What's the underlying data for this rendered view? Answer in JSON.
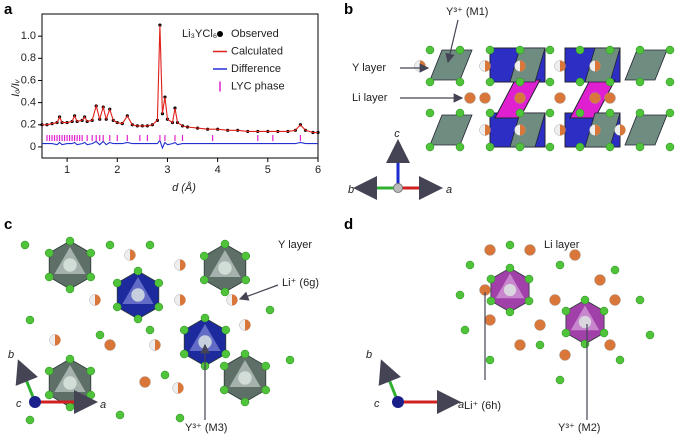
{
  "chart_data": {
    "type": "line",
    "panel_label": "a",
    "annotation": "Li₃YCl₆",
    "xlabel": "d (Å)",
    "ylabel": "Iₒ/Iᵥ",
    "xlim": [
      0.5,
      6
    ],
    "xticks": [
      1,
      2,
      3,
      4,
      5,
      6
    ],
    "ylim": [
      -0.1,
      1.2
    ],
    "yticks": [
      0,
      0.2,
      0.4,
      0.6,
      0.8,
      {
        "value": 1,
        "label": "1.0"
      }
    ],
    "legend": "upper right",
    "x": [
      0.5,
      0.6,
      0.7,
      0.8,
      0.85,
      0.9,
      1.0,
      1.1,
      1.15,
      1.2,
      1.3,
      1.35,
      1.4,
      1.5,
      1.58,
      1.65,
      1.72,
      1.78,
      1.85,
      1.92,
      2.0,
      2.1,
      2.2,
      2.3,
      2.4,
      2.5,
      2.6,
      2.7,
      2.8,
      2.85,
      2.9,
      2.95,
      3.0,
      3.1,
      3.15,
      3.2,
      3.3,
      3.4,
      3.6,
      3.8,
      4.0,
      4.2,
      4.4,
      4.6,
      4.8,
      5.0,
      5.2,
      5.4,
      5.55,
      5.65,
      5.75,
      5.9,
      6.0
    ],
    "series": [
      {
        "name": "Observed",
        "color": "#000000",
        "style": "dots",
        "values": [
          0.2,
          0.2,
          0.21,
          0.22,
          0.27,
          0.22,
          0.22,
          0.23,
          0.28,
          0.23,
          0.24,
          0.27,
          0.23,
          0.24,
          0.37,
          0.25,
          0.36,
          0.25,
          0.34,
          0.24,
          0.22,
          0.21,
          0.28,
          0.2,
          0.19,
          0.19,
          0.19,
          0.2,
          0.24,
          1.1,
          0.3,
          0.45,
          0.25,
          0.22,
          0.35,
          0.22,
          0.19,
          0.18,
          0.17,
          0.16,
          0.16,
          0.15,
          0.15,
          0.14,
          0.14,
          0.14,
          0.14,
          0.14,
          0.15,
          0.2,
          0.15,
          0.13,
          0.13
        ]
      },
      {
        "name": "Calculated",
        "color": "#e0201a",
        "style": "line",
        "values": [
          0.2,
          0.2,
          0.21,
          0.22,
          0.27,
          0.22,
          0.22,
          0.23,
          0.28,
          0.23,
          0.24,
          0.27,
          0.23,
          0.24,
          0.37,
          0.25,
          0.36,
          0.25,
          0.34,
          0.24,
          0.22,
          0.21,
          0.28,
          0.2,
          0.19,
          0.19,
          0.19,
          0.2,
          0.24,
          1.1,
          0.3,
          0.45,
          0.25,
          0.22,
          0.35,
          0.22,
          0.19,
          0.18,
          0.17,
          0.16,
          0.16,
          0.15,
          0.15,
          0.14,
          0.14,
          0.14,
          0.14,
          0.14,
          0.15,
          0.2,
          0.15,
          0.13,
          0.13
        ]
      },
      {
        "name": "Difference",
        "color": "#2230d0",
        "style": "line",
        "values": [
          0.03,
          0.03,
          0.03,
          0.02,
          0.04,
          0.02,
          0.03,
          0.03,
          0.04,
          0.02,
          0.03,
          0.04,
          0.02,
          0.03,
          0.05,
          0.02,
          0.05,
          0.02,
          0.04,
          0.03,
          0.03,
          0.03,
          0.04,
          0.03,
          0.03,
          0.03,
          0.03,
          0.03,
          0.03,
          0.06,
          -0.01,
          0.04,
          0.02,
          0.03,
          0.04,
          0.02,
          0.03,
          0.03,
          0.03,
          0.03,
          0.03,
          0.03,
          0.03,
          0.03,
          0.03,
          0.03,
          0.03,
          0.03,
          0.03,
          0.04,
          0.03,
          0.03,
          0.03
        ]
      }
    ],
    "phase": {
      "name": "LYC phase",
      "color": "#e020d0",
      "level": 0.08,
      "positions": [
        0.6,
        0.65,
        0.7,
        0.75,
        0.8,
        0.85,
        0.9,
        0.95,
        1.0,
        1.05,
        1.1,
        1.15,
        1.2,
        1.25,
        1.3,
        1.4,
        1.5,
        1.58,
        1.65,
        1.72,
        1.85,
        2.0,
        2.2,
        2.45,
        2.6,
        2.85,
        2.95,
        3.15,
        3.3,
        3.9,
        4.8,
        5.1,
        5.65
      ]
    }
  },
  "panels": {
    "b": {
      "label": "b",
      "site": "Y³⁺ (M1)",
      "y_layer": "Y layer",
      "li_layer": "Li layer",
      "axes": [
        "c",
        "b",
        "a"
      ]
    },
    "c": {
      "label": "c",
      "layer": "Y layer",
      "li_site": "Li⁺ (6g)",
      "y_site": "Y³⁺ (M3)",
      "axes": [
        "b",
        "c",
        "a"
      ]
    },
    "d": {
      "label": "d",
      "layer": "Li layer",
      "li_site": "Li⁺ (6h)",
      "y_site": "Y³⁺ (M2)",
      "axes": [
        "b",
        "c",
        "a"
      ]
    }
  }
}
